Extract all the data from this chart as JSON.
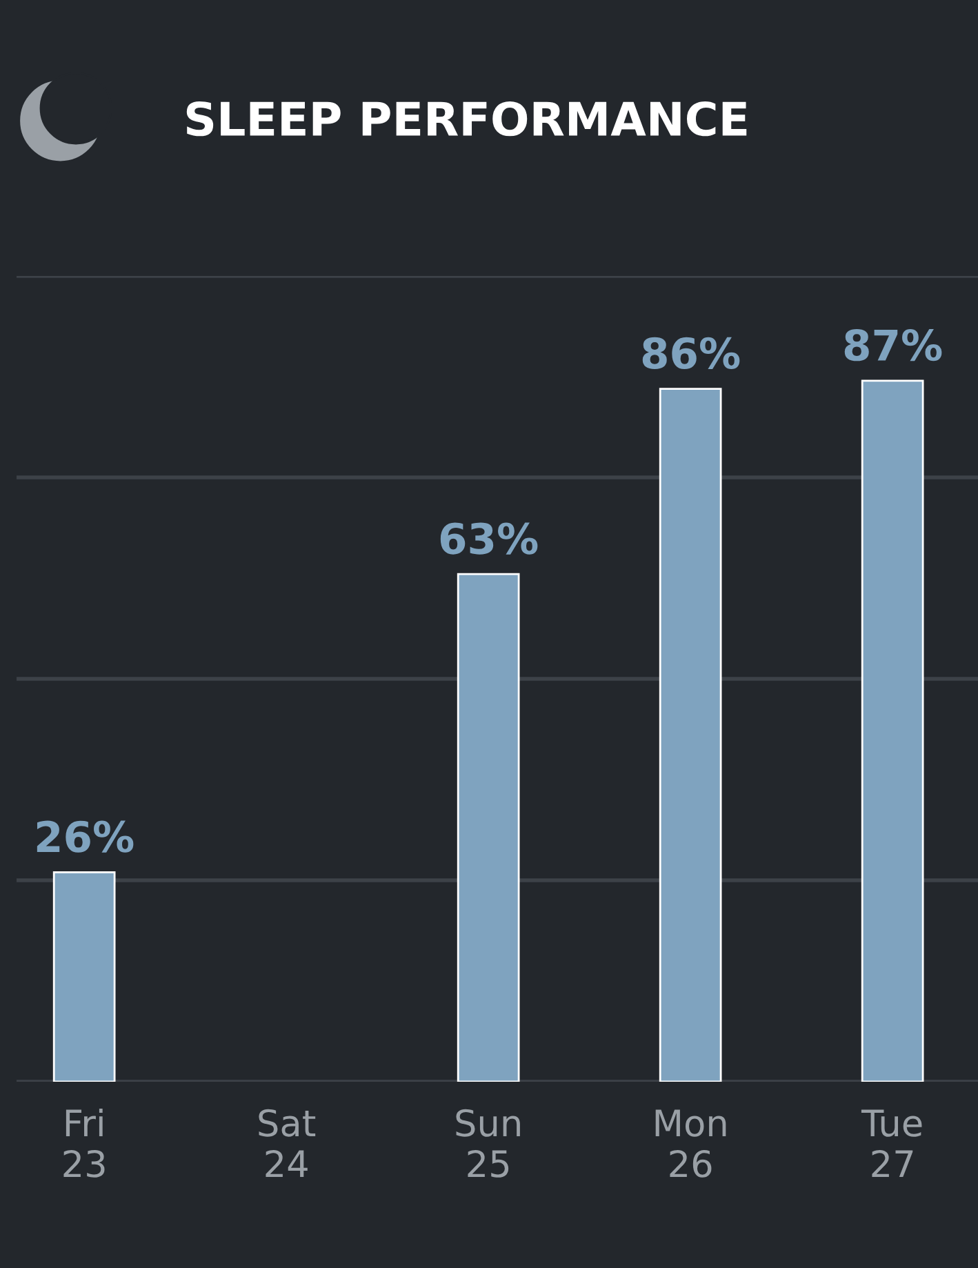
{
  "chart_data": {
    "type": "bar",
    "title": "SLEEP PERFORMANCE",
    "categories": [
      "Fri\n23",
      "Sat\n24",
      "Sun\n25",
      "Mon\n26",
      "Tue\n27"
    ],
    "values": [
      26,
      null,
      63,
      86,
      87
    ],
    "value_labels": [
      "26%",
      null,
      "63%",
      "86%",
      "87%"
    ],
    "color": "#7fa3bf",
    "ylim": [
      0,
      100
    ],
    "yticks": [
      {
        "value": 0,
        "label": null
      },
      {
        "value": 25,
        "label": null
      },
      {
        "value": 50,
        "label": null
      },
      {
        "value": 75,
        "label": null
      },
      {
        "value": 100,
        "label": null
      }
    ],
    "grid": "y",
    "legend": false
  }
}
